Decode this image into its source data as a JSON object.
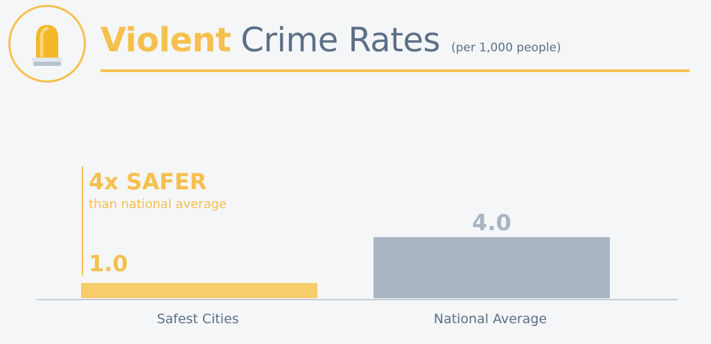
{
  "chart_data": {
    "type": "bar",
    "title": "Violent Crime Rates",
    "title_highlight": "Violent",
    "title_rest": "Crime Rates",
    "subtitle": "(per 1,000 people)",
    "categories": [
      "Safest Cities",
      "National Average"
    ],
    "values": [
      1.0,
      4.0
    ],
    "value_labels": [
      "1.0",
      "4.0"
    ],
    "bar_colors": [
      "#f7cd6b",
      "#a9b5c3"
    ],
    "label_colors": [
      "#f5c04e",
      "#a9b5c3"
    ],
    "ylim": [
      0,
      4.0
    ],
    "grid": false,
    "annotation": {
      "headline": "4x SAFER",
      "detail": "than national average"
    }
  },
  "icon": "siren-icon",
  "colors": {
    "accent": "#f5c04e",
    "slate": "#5c6f85",
    "gray_bar": "#a9b5c3",
    "axis": "#c5ccd6"
  }
}
